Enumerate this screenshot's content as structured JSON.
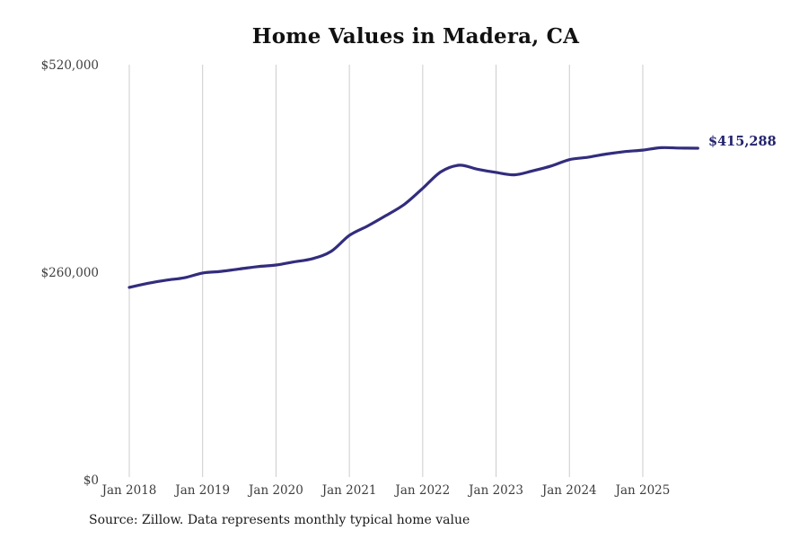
{
  "page": {
    "title": "Home Values in Madera, CA",
    "current_value_label": "$415,288",
    "source_note": "Source: Zillow. Data represents monthly typical home value"
  },
  "colors": {
    "line": "#322d7d",
    "value_label": "#23236e",
    "grid": "#cccccc",
    "tick_text": "#3d3d3d",
    "title_text": "#111111",
    "source_text": "#1a1a1a"
  },
  "chart_data": {
    "type": "line",
    "title": "Home Values in Madera, CA",
    "xlabel": "",
    "ylabel": "",
    "ylim": [
      0,
      520000
    ],
    "grid": "vertical-only",
    "legend_position": "none",
    "end_annotation": "$415,288",
    "y_tick_values": [
      0,
      260000,
      520000
    ],
    "y_tick_labels": [
      "$0",
      "$260,000",
      "$520,000"
    ],
    "x_tick_labels": [
      "Jan 2018",
      "Jan 2019",
      "Jan 2020",
      "Jan 2021",
      "Jan 2022",
      "Jan 2023",
      "Jan 2024",
      "Jan 2025"
    ],
    "series": [
      {
        "name": "Monthly typical home value",
        "points": [
          {
            "date": "2018-01",
            "value": 241000
          },
          {
            "date": "2018-04",
            "value": 246000
          },
          {
            "date": "2018-07",
            "value": 250000
          },
          {
            "date": "2018-10",
            "value": 253000
          },
          {
            "date": "2019-01",
            "value": 259000
          },
          {
            "date": "2019-04",
            "value": 261000
          },
          {
            "date": "2019-07",
            "value": 264000
          },
          {
            "date": "2019-10",
            "value": 267000
          },
          {
            "date": "2020-01",
            "value": 269000
          },
          {
            "date": "2020-04",
            "value": 273000
          },
          {
            "date": "2020-07",
            "value": 277000
          },
          {
            "date": "2020-10",
            "value": 286000
          },
          {
            "date": "2021-01",
            "value": 306000
          },
          {
            "date": "2021-04",
            "value": 318000
          },
          {
            "date": "2021-07",
            "value": 331000
          },
          {
            "date": "2021-10",
            "value": 345000
          },
          {
            "date": "2022-01",
            "value": 365000
          },
          {
            "date": "2022-04",
            "value": 386000
          },
          {
            "date": "2022-07",
            "value": 394000
          },
          {
            "date": "2022-10",
            "value": 389000
          },
          {
            "date": "2023-01",
            "value": 385000
          },
          {
            "date": "2023-04",
            "value": 382000
          },
          {
            "date": "2023-07",
            "value": 387000
          },
          {
            "date": "2023-10",
            "value": 393000
          },
          {
            "date": "2024-01",
            "value": 401000
          },
          {
            "date": "2024-04",
            "value": 404000
          },
          {
            "date": "2024-07",
            "value": 408000
          },
          {
            "date": "2024-10",
            "value": 411000
          },
          {
            "date": "2025-01",
            "value": 413000
          },
          {
            "date": "2025-04",
            "value": 416000
          },
          {
            "date": "2025-07",
            "value": 415500
          },
          {
            "date": "2025-10",
            "value": 415288
          }
        ]
      }
    ]
  }
}
